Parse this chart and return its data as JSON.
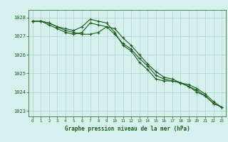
{
  "x": [
    0,
    1,
    2,
    3,
    4,
    5,
    6,
    7,
    8,
    9,
    10,
    11,
    12,
    13,
    14,
    15,
    16,
    17,
    18,
    19,
    20,
    21,
    22,
    23
  ],
  "line1": [
    1027.8,
    1027.8,
    1027.7,
    1027.5,
    1027.4,
    1027.3,
    1027.5,
    1027.9,
    1027.8,
    1027.7,
    1027.2,
    1026.5,
    1026.2,
    1025.6,
    1025.2,
    1024.7,
    1024.6,
    1024.6,
    1024.5,
    1024.3,
    1024.0,
    1023.8,
    1023.4,
    1023.2
  ],
  "line2": [
    1027.8,
    1027.8,
    1027.7,
    1027.5,
    1027.3,
    1027.2,
    1027.1,
    1027.1,
    1027.2,
    1027.5,
    1027.4,
    1026.9,
    1026.5,
    1026.0,
    1025.5,
    1025.1,
    1024.8,
    1024.7,
    1024.5,
    1024.4,
    1024.2,
    1023.9,
    1023.5,
    1023.2
  ],
  "line3": [
    1027.8,
    1027.8,
    1027.6,
    1027.4,
    1027.2,
    1027.1,
    1027.2,
    1027.7,
    1027.6,
    1027.5,
    1027.1,
    1026.6,
    1026.3,
    1025.8,
    1025.4,
    1024.9,
    1024.7,
    1024.6,
    1024.5,
    1024.3,
    1024.1,
    1023.8,
    1023.4,
    1023.2
  ],
  "ylim": [
    1022.7,
    1028.4
  ],
  "yticks": [
    1023,
    1024,
    1025,
    1026,
    1027,
    1028
  ],
  "xticks": [
    0,
    1,
    2,
    3,
    4,
    5,
    6,
    7,
    8,
    9,
    10,
    11,
    12,
    13,
    14,
    15,
    16,
    17,
    18,
    19,
    20,
    21,
    22,
    23
  ],
  "line_color": "#1a5c1a",
  "bg_color": "#d6f0ee",
  "grid_color": "#aad4cc",
  "xlabel": "Graphe pression niveau de la mer (hPa)",
  "xlabel_color": "#1a5c1a",
  "tick_color": "#1a5c1a",
  "marker": "+",
  "marker_size": 3,
  "line_width": 0.8
}
